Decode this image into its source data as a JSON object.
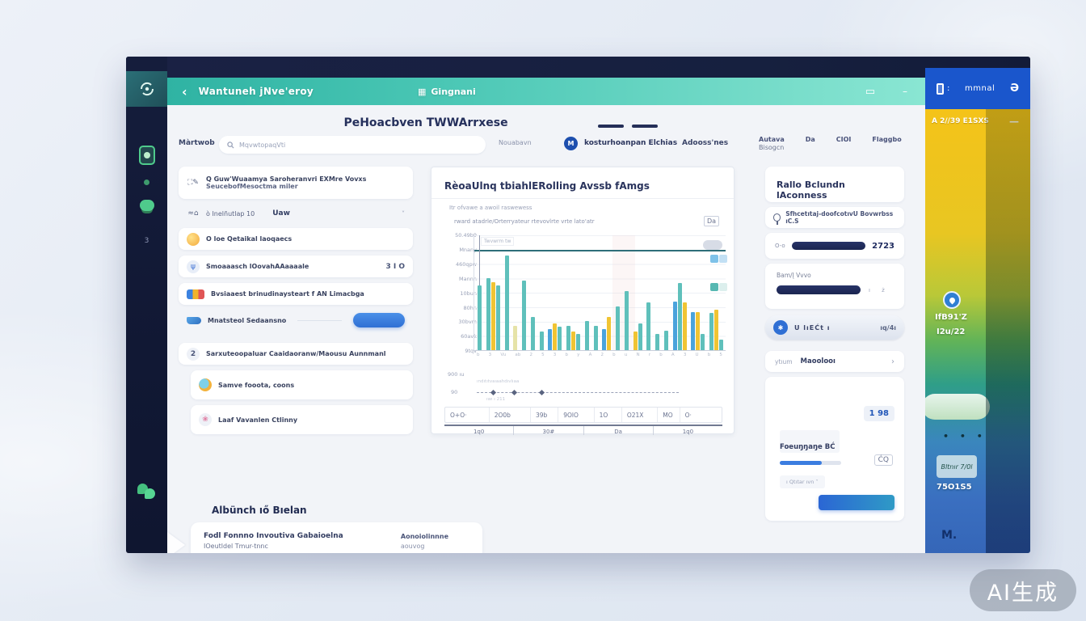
{
  "watermark": "AI生成",
  "titlebar": {},
  "sidebar": {
    "icons": [
      "card-icon",
      "dot-icon",
      "coins-icon"
    ],
    "count": "3"
  },
  "header": {
    "back": "‹",
    "title": "Wantuneh jNve'eroy",
    "center_icon": "▦",
    "center_label": "Gingnani",
    "screen_icon": "▭",
    "minimize": "–"
  },
  "account": {
    "label": "mmnal",
    "power": "Ə"
  },
  "strip": {
    "date": "A 2//39 E1SXS",
    "minimize": "—",
    "line1": "IfB91'Z",
    "line2": "I2u/22",
    "dots": "• • •",
    "badge": "Bltnır 7/0l",
    "value": "75O1S5",
    "logo": "M."
  },
  "toolbar": {
    "page_title": "PeHoacbven TWWArrxese",
    "search_label": "Màrtwob",
    "search_placeholder": "MqvwtopaqVti",
    "right_text": "Nouabavn",
    "avatar": "M",
    "user": "kosturhoanpan Elchias",
    "user2": "Adooss'nes",
    "meta": [
      {
        "l1": "Autava",
        "l2": "Bisogcn"
      },
      {
        "l1": "Da",
        "l2": ""
      },
      {
        "l1": "CIOI",
        "l2": ""
      },
      {
        "l1": "Flaggbo",
        "l2": ""
      }
    ]
  },
  "left_list": [
    {
      "kind": "card2",
      "icon": "li-glyphs",
      "glyph": "⛶✎",
      "line1": "Q Guw'Wuaamya Saroheranvri EXMre Vovxs",
      "line2": "SeucebofMesoctma miler"
    },
    {
      "kind": "select",
      "icon": "li-glyphs",
      "glyph": "≈⌂",
      "line1": "ò Inelñutlap 10",
      "value": "Uaw",
      "caret": "˅"
    },
    {
      "kind": "card",
      "icon": "li-orange",
      "glyph": "",
      "line1": "O loe Qetaikal laoqaecs"
    },
    {
      "kind": "card",
      "icon": "li-mic",
      "glyph": "ψ",
      "line1": "Smoaaasch lOovahAAaaaale",
      "right": "3 I O"
    },
    {
      "kind": "card",
      "icon": "li-multi",
      "glyph": "",
      "line1": "Bvsiaaest brinudinaysteart f AN Limacbga"
    },
    {
      "kind": "btnrow",
      "icon": "li-pen",
      "glyph": "",
      "line1": "Mnatsteol Sedaansno"
    },
    {
      "kind": "card",
      "icon": "li-num",
      "glyph": "2",
      "line1": "Sarxuteoopaluar Caaidaoranw/Maousu Aunnmanl"
    },
    {
      "kind": "cardind",
      "icon": "li-globe",
      "glyph": "",
      "line1": "Samve fooota, coons"
    },
    {
      "kind": "cardind",
      "icon": "li-ribbon",
      "glyph": "❀",
      "line1": "Laaf Vavanlen Ctlinny"
    }
  ],
  "archive": {
    "heading": "Albünch ıő Bıelan",
    "card_line1": "Fodl Fonnno Invoutiva Gabaioelna",
    "card_line2": "IOeutldel Tmur-tnnc",
    "right_line1": "Aonoiolinnne",
    "right_line2": "aouvog"
  },
  "chart_panel": {
    "title": "RèoaUlnq tbiahlERolling Avssb fAmgs",
    "sub1": "Itr ofvawe a awoil raswewess",
    "sub2": "rward atadrle/Orterryateur rtevovlrte vrte lato'atr",
    "corner_icon": "Da",
    "tooltip": "Twvwrm tw",
    "spark1_label": "900 ıu",
    "spark1_sub": "ındıtıtvaıaahdıvlıaa",
    "spark2_label": "90",
    "spark2_sub": "ıwı ı 211"
  },
  "chart_data": {
    "type": "bar",
    "title": "RèoaUlnq tbiahlERolling Avssb fAmgs",
    "y_labels": [
      "50.49b9",
      "Mnany",
      "460qpw",
      "Mannn",
      "10bun",
      "80hn",
      "30bvm",
      "60avk",
      "9tqv"
    ],
    "x_labels": [
      "b",
      "3",
      "Vu",
      "ab",
      "2",
      "5",
      "3",
      "b",
      "y",
      "A",
      "2",
      "b",
      "u",
      "N",
      "r",
      "b",
      "A",
      "3",
      "U",
      "b",
      "5"
    ],
    "colors": {
      "t": "#5fc0bb",
      "b": "#4aa3dc",
      "y": "#f0c433",
      "ly": "#e6e3a8"
    },
    "groups": [
      [
        [
          "t",
          56
        ]
      ],
      [
        [
          "t",
          62
        ],
        [
          "y",
          59
        ],
        [
          "t",
          56
        ]
      ],
      [
        [
          "t",
          82
        ]
      ],
      [
        [
          "ly",
          21
        ]
      ],
      [
        [
          "t",
          60
        ]
      ],
      [
        [
          "t",
          29
        ]
      ],
      [
        [
          "t",
          16
        ]
      ],
      [
        [
          "b",
          18
        ],
        [
          "y",
          23
        ],
        [
          "t",
          20
        ]
      ],
      [
        [
          "t",
          21
        ],
        [
          "y",
          16
        ],
        [
          "t",
          14
        ]
      ],
      [
        [
          "t",
          25
        ]
      ],
      [
        [
          "t",
          21
        ]
      ],
      [
        [
          "b",
          18
        ],
        [
          "y",
          29
        ]
      ],
      [
        [
          "t",
          38
        ]
      ],
      [
        [
          "t",
          51
        ]
      ],
      [
        [
          "y",
          16
        ],
        [
          "t",
          23
        ]
      ],
      [
        [
          "t",
          41
        ]
      ],
      [
        [
          "t",
          14
        ]
      ],
      [
        [
          "t",
          17
        ]
      ],
      [
        [
          "b",
          42
        ],
        [
          "t",
          58
        ],
        [
          "y",
          41
        ]
      ],
      [
        [
          "b",
          33
        ],
        [
          "y",
          33
        ],
        [
          "t",
          14
        ]
      ],
      [
        [
          "t",
          32
        ],
        [
          "y",
          35
        ],
        [
          "t",
          9
        ]
      ]
    ],
    "legend": [
      {
        "a": "#7ec2e9",
        "b": "#c2e0f4"
      },
      {
        "a": "#57b8b2",
        "b": "#dcefed"
      }
    ],
    "table_values": [
      "O+O·",
      "2O0b",
      "39b",
      "9OlO",
      "1O",
      "O21X",
      "MO",
      "O·"
    ],
    "bottom_labels": [
      "1q0",
      "30#",
      "Da",
      "1q0"
    ]
  },
  "right_panel": {
    "title": "Rallo Bclundn lAconness",
    "access_text": "Sfhcetıtaj-doofcotıvU Bovwrbss ıC.S",
    "stat_prefix": "O-o",
    "stat_value": "2723",
    "balance_label": "Bam/Į Vvvo",
    "balance_small": "ı ż",
    "pill_icon": "✱",
    "pill_text": "U lıEĆt ı",
    "pill_value": "ıq/4ı",
    "link_left": "ytıum",
    "link_label": "Maoolooı",
    "link_chevron": "›",
    "badge": "1 98",
    "card_label": "Foeuŋŋaŋe BĆ",
    "copy_icon": "ĆQ",
    "note": "ı Qtıtar ıvn  ˅"
  }
}
